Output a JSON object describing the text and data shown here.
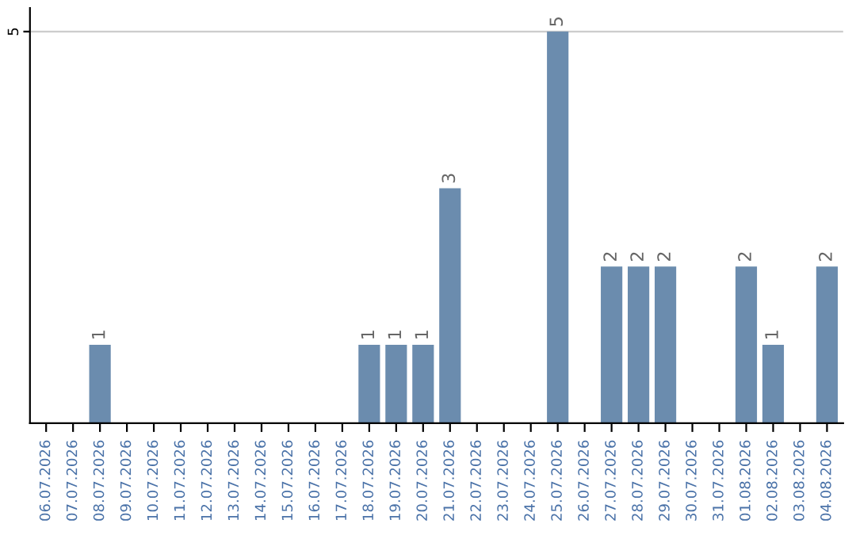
{
  "chart_data": {
    "type": "bar",
    "categories": [
      "06.07.2026",
      "07.07.2026",
      "08.07.2026",
      "09.07.2026",
      "10.07.2026",
      "11.07.2026",
      "12.07.2026",
      "13.07.2026",
      "14.07.2026",
      "15.07.2026",
      "16.07.2026",
      "17.07.2026",
      "18.07.2026",
      "19.07.2026",
      "20.07.2026",
      "21.07.2026",
      "22.07.2026",
      "23.07.2026",
      "24.07.2026",
      "25.07.2026",
      "26.07.2026",
      "27.07.2026",
      "28.07.2026",
      "29.07.2026",
      "30.07.2026",
      "31.07.2026",
      "01.08.2026",
      "02.08.2026",
      "03.08.2026",
      "04.08.2026"
    ],
    "values": [
      0,
      0,
      1,
      0,
      0,
      0,
      0,
      0,
      0,
      0,
      0,
      0,
      1,
      1,
      1,
      3,
      0,
      0,
      0,
      5,
      0,
      2,
      2,
      2,
      0,
      0,
      2,
      1,
      0,
      2
    ],
    "value_labels": [
      null,
      null,
      "1",
      null,
      null,
      null,
      null,
      null,
      null,
      null,
      null,
      null,
      "1",
      "1",
      "1",
      "3",
      null,
      null,
      null,
      "5",
      null,
      "2",
      "2",
      "2",
      null,
      null,
      "2",
      "1",
      null,
      "2"
    ],
    "color": "#6b8cae",
    "ylim": [
      0,
      5.3
    ],
    "yticks": [
      5
    ],
    "grid": "y"
  }
}
